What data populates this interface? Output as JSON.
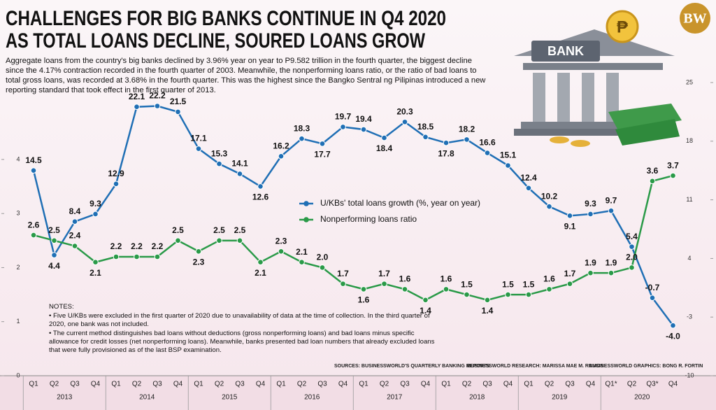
{
  "chart_data": {
    "type": "line",
    "title_lines": [
      "CHALLENGES FOR BIG BANKS CONTINUE IN Q4 2020",
      "AS TOTAL LOANS DECLINE, SOURED LOANS GROW"
    ],
    "subtitle": "Aggregate loans from the country's big banks declined by 3.96% year on year to P9.582 trillion in the fourth quarter, the biggest decline since the 4.17% contraction recorded in the fourth quarter of 2003. Meanwhile, the nonperforming loans ratio, or the ratio of bad loans to total gross loans, was recorded at 3.68% in the fourth quarter. This was the highest since the Bangko Sentral ng Pilipinas introduced a new reporting standard that took effect in the first quarter of 2013.",
    "logo": "BW",
    "illustration_label": "BANK",
    "coin_symbol": "₱",
    "categories": [
      "Q1",
      "Q2",
      "Q3",
      "Q4",
      "Q1",
      "Q2",
      "Q3",
      "Q4",
      "Q1",
      "Q2",
      "Q3",
      "Q4",
      "Q1",
      "Q2",
      "Q3",
      "Q4",
      "Q1",
      "Q2",
      "Q3",
      "Q4",
      "Q1",
      "Q2",
      "Q3",
      "Q4",
      "Q1",
      "Q2",
      "Q3",
      "Q4",
      "Q1*",
      "Q2",
      "Q3*",
      "Q4"
    ],
    "years": [
      "2013",
      "2014",
      "2015",
      "2016",
      "2017",
      "2018",
      "2019",
      "2020"
    ],
    "series": [
      {
        "name": "U/KBs' total loans growth (%, year on year)",
        "color": "#1f6fb5",
        "axis": "y2",
        "values": [
          14.5,
          4.4,
          8.4,
          9.3,
          12.9,
          22.1,
          22.2,
          21.5,
          17.1,
          15.3,
          14.1,
          12.6,
          16.2,
          18.3,
          17.7,
          19.7,
          19.4,
          18.4,
          20.3,
          18.5,
          17.8,
          18.2,
          16.6,
          15.1,
          12.4,
          10.2,
          9.1,
          9.3,
          9.7,
          5.4,
          -0.7,
          -4.0
        ],
        "value_labels": [
          "14.5",
          "4.4",
          "8.4",
          "9.3",
          "12.9",
          "22.1",
          "22.2",
          "21.5",
          "17.1",
          "15.3",
          "14.1",
          "12.6",
          "16.2",
          "18.3",
          "17.7",
          "19.7",
          "19.4",
          "18.4",
          "20.3",
          "18.5",
          "17.8",
          "18.2",
          "16.6",
          "15.1",
          "12.4",
          "10.2",
          "9.1",
          "9.3",
          "9.7",
          "5.4",
          "-0.7",
          "-4.0"
        ]
      },
      {
        "name": "Nonperforming loans ratio",
        "color": "#2a9a48",
        "values": [
          2.6,
          2.5,
          2.4,
          2.1,
          2.2,
          2.2,
          2.2,
          2.5,
          2.3,
          2.5,
          2.5,
          2.1,
          2.3,
          2.1,
          2.0,
          1.7,
          1.6,
          1.7,
          1.6,
          1.4,
          1.6,
          1.5,
          1.4,
          1.5,
          1.5,
          1.6,
          1.7,
          1.9,
          1.9,
          2.0,
          3.6,
          3.7
        ],
        "value_labels": [
          "2.6",
          "2.5",
          "2.4",
          "2.1",
          "2.2",
          "2.2",
          "2.2",
          "2.5",
          "2.3",
          "2.5",
          "2.5",
          "2.1",
          "2.3",
          "2.1",
          "2.0",
          "1.7",
          "1.6",
          "1.7",
          "1.6",
          "1.4",
          "1.6",
          "1.5",
          "1.4",
          "1.5",
          "1.5",
          "1.6",
          "1.7",
          "1.9",
          "1.9",
          "2.0",
          "3.6",
          "3.7"
        ]
      }
    ],
    "ylim": [
      0,
      5.5
    ],
    "yticks": [
      0,
      1,
      2,
      3,
      4
    ],
    "y2lim": [
      -10,
      25.5
    ],
    "y2ticks": [
      -10,
      -3,
      4,
      11,
      18,
      25
    ],
    "notes": {
      "heading": "NOTES:",
      "items": [
        "• Five U/KBs were excluded in the first quarter of 2020 due to unavailability of data at the time of collection. In the third quarter of 2020, one bank was not included.",
        "• The current method distinguishes bad loans without deductions (gross nonperforming loans) and bad loans minus specific allowance for credit losses (net nonperforming loans). Meanwhile, banks presented bad loan numbers that already excluded loans that were fully provisioned as of the last BSP examination."
      ]
    },
    "sources": [
      "SOURCES: BUSINESSWORLD'S QUARTERLY BANKING REPORTS",
      "BUSINESSWORLD RESEARCH: MARISSA MAE M. RAMOS",
      "BUSINESSWORLD GRAPHICS: BONG R. FORTIN"
    ]
  }
}
